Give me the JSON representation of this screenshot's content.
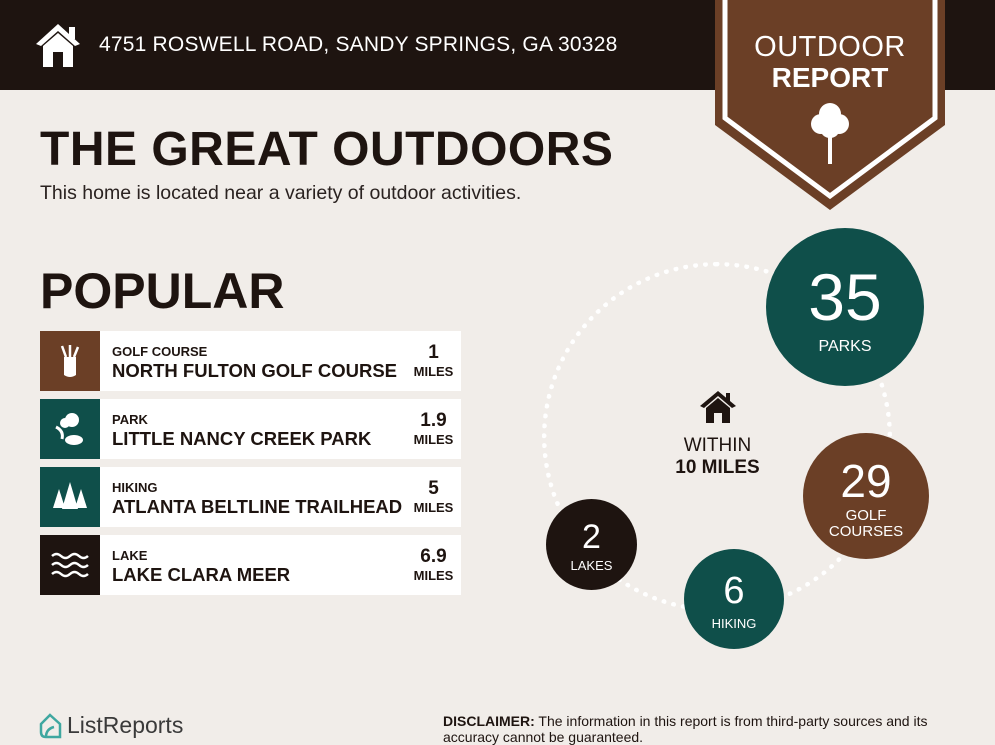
{
  "header": {
    "address": "4751 ROSWELL ROAD, SANDY SPRINGS, GA 30328",
    "icon": "house-icon"
  },
  "badge": {
    "line1": "OUTDOOR",
    "line2": "REPORT",
    "icon": "tree-icon"
  },
  "title": "THE GREAT OUTDOORS",
  "subtitle": "This home is located near a variety of outdoor activities.",
  "popular": {
    "heading": "POPULAR",
    "items": [
      {
        "category": "GOLF COURSE",
        "name": "NORTH FULTON GOLF COURSE",
        "distance": "1",
        "unit": "MILES",
        "icon": "golf-bag-icon",
        "color": "#6b3f26"
      },
      {
        "category": "PARK",
        "name": "LITTLE NANCY CREEK PARK",
        "distance": "1.9",
        "unit": "MILES",
        "icon": "park-icon",
        "color": "#0f4f4a"
      },
      {
        "category": "HIKING",
        "name": "ATLANTA BELTLINE TRAILHEAD",
        "distance": "5",
        "unit": "MILES",
        "icon": "pine-trees-icon",
        "color": "#0f4f4a"
      },
      {
        "category": "LAKE",
        "name": "LAKE CLARA MEER",
        "distance": "6.9",
        "unit": "MILES",
        "icon": "waves-icon",
        "color": "#1e1410"
      }
    ]
  },
  "summary": {
    "within_line1": "WITHIN",
    "within_line2": "10 MILES",
    "parks": {
      "count": "35",
      "label": "PARKS",
      "color": "#0f4f4a"
    },
    "golf": {
      "count": "29",
      "label1": "GOLF",
      "label2": "COURSES",
      "color": "#6b3f26"
    },
    "hiking": {
      "count": "6",
      "label": "HIKING",
      "color": "#0f4f4a"
    },
    "lakes": {
      "count": "2",
      "label": "LAKES",
      "color": "#1e1410"
    }
  },
  "footer": {
    "logo": "ListReports",
    "disclaimer_label": "DISCLAIMER:",
    "disclaimer_text": " The information in this report is from third-party sources and its accuracy cannot be guaranteed."
  }
}
